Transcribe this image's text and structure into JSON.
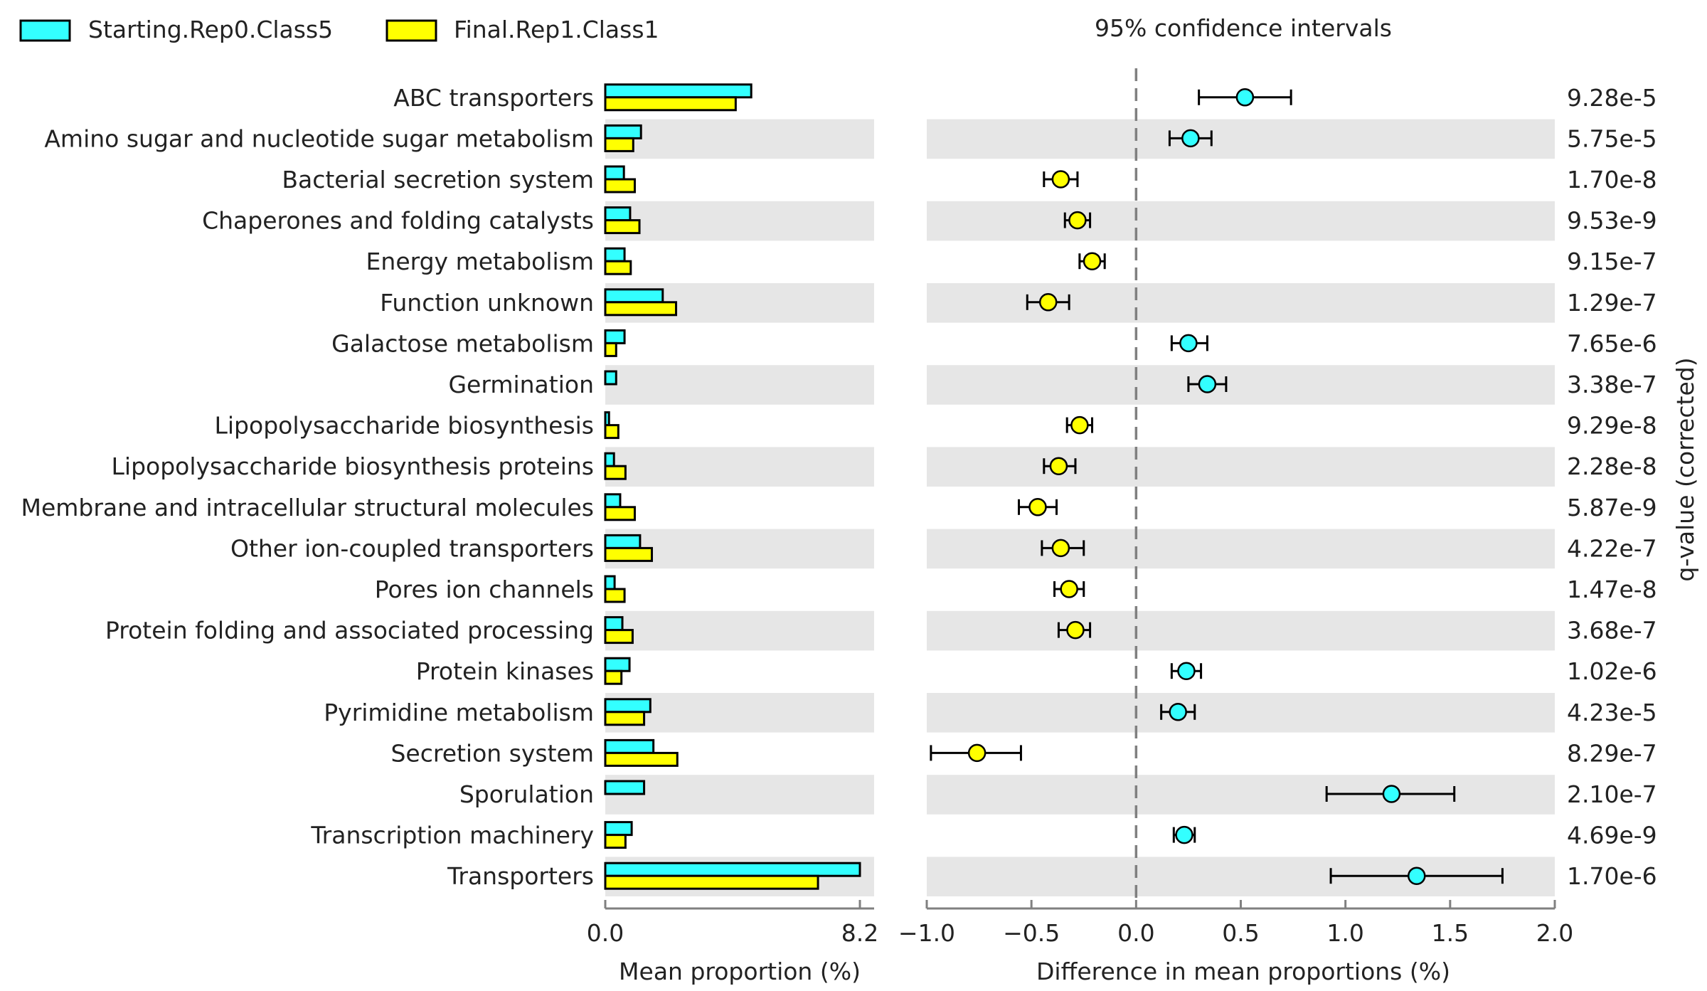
{
  "legend": [
    {
      "label": "Starting.Rep0.Class5",
      "color": "#33ffff"
    },
    {
      "label": "Final.Rep1.Class1",
      "color": "#ffff00"
    }
  ],
  "right_title": "95% confidence intervals",
  "right_axis_label": "q-value (corrected)",
  "chart_data": [
    {
      "type": "bar",
      "orientation": "horizontal",
      "xlabel": "Mean proportion (%)",
      "xlim": [
        0.0,
        8.2
      ],
      "xticks": [
        "0.0",
        "8.2"
      ],
      "categories": [
        "ABC transporters",
        "Amino sugar and nucleotide sugar metabolism",
        "Bacterial secretion system",
        "Chaperones and folding catalysts",
        "Energy metabolism",
        "Function unknown",
        "Galactose metabolism",
        "Germination",
        "Lipopolysaccharide biosynthesis",
        "Lipopolysaccharide biosynthesis proteins",
        "Membrane and intracellular structural molecules",
        "Other ion-coupled transporters",
        "Pores ion channels",
        "Protein folding and associated processing",
        "Protein kinases",
        "Pyrimidine metabolism",
        "Secretion system",
        "Sporulation",
        "Transcription machinery",
        "Transporters"
      ],
      "series": [
        {
          "name": "Starting.Rep0.Class5",
          "color": "#33ffff",
          "values": [
            4.7,
            1.15,
            0.6,
            0.8,
            0.62,
            1.85,
            0.62,
            0.35,
            0.12,
            0.28,
            0.48,
            1.12,
            0.3,
            0.55,
            0.78,
            1.45,
            1.55,
            1.25,
            0.85,
            8.2
          ]
        },
        {
          "name": "Final.Rep1.Class1",
          "color": "#ffff00",
          "values": [
            4.2,
            0.9,
            0.95,
            1.1,
            0.82,
            2.28,
            0.35,
            0.0,
            0.42,
            0.65,
            0.95,
            1.5,
            0.62,
            0.88,
            0.52,
            1.25,
            2.32,
            0.0,
            0.65,
            6.85
          ]
        }
      ]
    },
    {
      "type": "scatter",
      "subtype": "errorbar",
      "title": "95% confidence intervals",
      "xlabel": "Difference in mean proportions (%)",
      "xlim": [
        -1.0,
        2.0
      ],
      "xticks": [
        "−1.0",
        "−0.5",
        "0.0",
        "0.5",
        "1.0",
        "1.5",
        "2.0"
      ],
      "reference_line": 0.0,
      "points": [
        {
          "diff": 0.52,
          "lo": 0.3,
          "hi": 0.74,
          "group": "Starting.Rep0.Class5",
          "q": "9.28e-5"
        },
        {
          "diff": 0.26,
          "lo": 0.16,
          "hi": 0.36,
          "group": "Starting.Rep0.Class5",
          "q": "5.75e-5"
        },
        {
          "diff": -0.36,
          "lo": -0.44,
          "hi": -0.28,
          "group": "Final.Rep1.Class1",
          "q": "1.70e-8"
        },
        {
          "diff": -0.28,
          "lo": -0.34,
          "hi": -0.22,
          "group": "Final.Rep1.Class1",
          "q": "9.53e-9"
        },
        {
          "diff": -0.21,
          "lo": -0.27,
          "hi": -0.15,
          "group": "Final.Rep1.Class1",
          "q": "9.15e-7"
        },
        {
          "diff": -0.42,
          "lo": -0.52,
          "hi": -0.32,
          "group": "Final.Rep1.Class1",
          "q": "1.29e-7"
        },
        {
          "diff": 0.25,
          "lo": 0.17,
          "hi": 0.34,
          "group": "Starting.Rep0.Class5",
          "q": "7.65e-6"
        },
        {
          "diff": 0.34,
          "lo": 0.25,
          "hi": 0.43,
          "group": "Starting.Rep0.Class5",
          "q": "3.38e-7"
        },
        {
          "diff": -0.27,
          "lo": -0.33,
          "hi": -0.21,
          "group": "Final.Rep1.Class1",
          "q": "9.29e-8"
        },
        {
          "diff": -0.37,
          "lo": -0.44,
          "hi": -0.29,
          "group": "Final.Rep1.Class1",
          "q": "2.28e-8"
        },
        {
          "diff": -0.47,
          "lo": -0.56,
          "hi": -0.38,
          "group": "Final.Rep1.Class1",
          "q": "5.87e-9"
        },
        {
          "diff": -0.36,
          "lo": -0.45,
          "hi": -0.25,
          "group": "Final.Rep1.Class1",
          "q": "4.22e-7"
        },
        {
          "diff": -0.32,
          "lo": -0.39,
          "hi": -0.25,
          "group": "Final.Rep1.Class1",
          "q": "1.47e-8"
        },
        {
          "diff": -0.29,
          "lo": -0.37,
          "hi": -0.22,
          "group": "Final.Rep1.Class1",
          "q": "3.68e-7"
        },
        {
          "diff": 0.24,
          "lo": 0.17,
          "hi": 0.31,
          "group": "Starting.Rep0.Class5",
          "q": "1.02e-6"
        },
        {
          "diff": 0.2,
          "lo": 0.12,
          "hi": 0.28,
          "group": "Starting.Rep0.Class5",
          "q": "4.23e-5"
        },
        {
          "diff": -0.76,
          "lo": -0.98,
          "hi": -0.55,
          "group": "Final.Rep1.Class1",
          "q": "8.29e-7"
        },
        {
          "diff": 1.22,
          "lo": 0.91,
          "hi": 1.52,
          "group": "Starting.Rep0.Class5",
          "q": "2.10e-7"
        },
        {
          "diff": 0.23,
          "lo": 0.18,
          "hi": 0.28,
          "group": "Starting.Rep0.Class5",
          "q": "4.69e-9"
        },
        {
          "diff": 1.34,
          "lo": 0.93,
          "hi": 1.75,
          "group": "Starting.Rep0.Class5",
          "q": "1.70e-6"
        }
      ]
    }
  ]
}
